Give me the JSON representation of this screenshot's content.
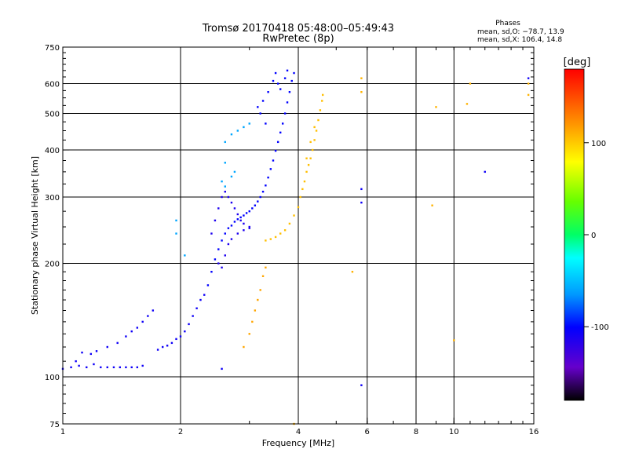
{
  "chart_data": {
    "type": "scatter",
    "title": "Tromsø 20170418 05:48:00–05:49:43",
    "subtitle": "RwPretec (8p)",
    "xlabel": "Frequency [MHz]",
    "ylabel": "Stationary phase Virtual Height [km]",
    "xscale": "log",
    "yscale": "log",
    "xlim": [
      1,
      16
    ],
    "ylim": [
      75,
      750
    ],
    "x_ticks": [
      {
        "v": 1,
        "label": "1"
      },
      {
        "v": 2,
        "label": "2"
      },
      {
        "v": 4,
        "label": "4"
      },
      {
        "v": 6,
        "label": "6"
      },
      {
        "v": 8,
        "label": "8"
      },
      {
        "v": 10,
        "label": "10"
      },
      {
        "v": 16,
        "label": "16"
      }
    ],
    "x_grid": [
      2,
      4,
      6,
      8,
      10
    ],
    "y_ticks": [
      {
        "v": 75,
        "label": "75"
      },
      {
        "v": 100,
        "label": "100"
      },
      {
        "v": 200,
        "label": "200"
      },
      {
        "v": 300,
        "label": "300"
      },
      {
        "v": 400,
        "label": "400"
      },
      {
        "v": 500,
        "label": "500"
      },
      {
        "v": 600,
        "label": "600"
      },
      {
        "v": 750,
        "label": "750"
      }
    ],
    "y_grid": [
      100,
      200,
      300,
      400,
      500,
      600
    ],
    "grid": true,
    "phase_info": {
      "title": "Phases",
      "line1": "mean, sd,O: −78.7, 13.9",
      "line2": "mean, sd,X: 106.4, 14.8"
    },
    "colorbar": {
      "label": "[deg]",
      "range": [
        -180,
        180
      ],
      "ticks": [
        {
          "v": 100,
          "label": "100"
        },
        {
          "v": 0,
          "label": "0"
        },
        {
          "v": -100,
          "label": "-100"
        }
      ]
    },
    "series": [
      {
        "trace": "O-mode E/F1 low trace (blue, ~-100 deg)",
        "phase": -105,
        "points": [
          [
            1.0,
            105
          ],
          [
            1.05,
            106
          ],
          [
            1.08,
            110
          ],
          [
            1.1,
            107
          ],
          [
            1.15,
            106
          ],
          [
            1.2,
            108
          ],
          [
            1.25,
            106
          ],
          [
            1.3,
            106
          ],
          [
            1.35,
            106
          ],
          [
            1.4,
            106
          ],
          [
            1.45,
            106
          ],
          [
            1.5,
            106
          ],
          [
            1.55,
            106
          ],
          [
            1.6,
            107
          ],
          [
            1.12,
            116
          ],
          [
            1.18,
            115
          ],
          [
            1.22,
            117
          ],
          [
            1.3,
            120
          ],
          [
            1.38,
            123
          ],
          [
            1.45,
            128
          ],
          [
            1.5,
            132
          ],
          [
            1.55,
            135
          ],
          [
            1.6,
            140
          ],
          [
            1.65,
            145
          ],
          [
            1.7,
            150
          ],
          [
            1.75,
            118
          ],
          [
            1.8,
            120
          ],
          [
            1.85,
            121
          ],
          [
            1.9,
            123
          ],
          [
            1.95,
            126
          ],
          [
            2.0,
            128
          ],
          [
            2.05,
            132
          ],
          [
            2.1,
            138
          ],
          [
            2.15,
            145
          ],
          [
            2.2,
            152
          ],
          [
            2.25,
            160
          ],
          [
            2.3,
            165
          ]
        ]
      },
      {
        "trace": "O-mode F2 trace (blue, ~-100 deg)",
        "phase": -100,
        "points": [
          [
            2.35,
            175
          ],
          [
            2.4,
            190
          ],
          [
            2.45,
            205
          ],
          [
            2.5,
            218
          ],
          [
            2.55,
            230
          ],
          [
            2.6,
            240
          ],
          [
            2.65,
            248
          ],
          [
            2.7,
            252
          ],
          [
            2.75,
            258
          ],
          [
            2.8,
            262
          ],
          [
            2.85,
            265
          ],
          [
            2.9,
            268
          ],
          [
            2.95,
            272
          ],
          [
            3.0,
            275
          ],
          [
            3.05,
            280
          ],
          [
            3.1,
            285
          ],
          [
            3.15,
            292
          ],
          [
            3.2,
            300
          ],
          [
            3.25,
            310
          ],
          [
            3.3,
            322
          ],
          [
            3.35,
            338
          ],
          [
            3.4,
            356
          ],
          [
            3.45,
            375
          ],
          [
            3.5,
            398
          ],
          [
            3.55,
            420
          ],
          [
            3.6,
            445
          ],
          [
            3.65,
            470
          ],
          [
            3.7,
            500
          ],
          [
            3.75,
            535
          ],
          [
            3.8,
            570
          ],
          [
            3.85,
            610
          ],
          [
            3.9,
            640
          ],
          [
            3.3,
            470
          ],
          [
            3.2,
            500
          ],
          [
            3.15,
            520
          ],
          [
            3.25,
            540
          ],
          [
            3.35,
            570
          ],
          [
            3.45,
            610
          ],
          [
            3.5,
            640
          ],
          [
            3.55,
            600
          ],
          [
            3.6,
            580
          ],
          [
            3.7,
            620
          ],
          [
            3.75,
            650
          ]
        ]
      },
      {
        "trace": "O-mode F1 cusp region (blue)",
        "phase": -110,
        "points": [
          [
            2.4,
            240
          ],
          [
            2.45,
            260
          ],
          [
            2.5,
            280
          ],
          [
            2.55,
            300
          ],
          [
            2.6,
            310
          ],
          [
            2.65,
            300
          ],
          [
            2.7,
            290
          ],
          [
            2.75,
            280
          ],
          [
            2.8,
            270
          ],
          [
            2.85,
            260
          ],
          [
            2.9,
            255
          ],
          [
            3.0,
            250
          ],
          [
            2.5,
            200
          ],
          [
            2.55,
            195
          ],
          [
            2.6,
            210
          ],
          [
            2.65,
            225
          ],
          [
            2.7,
            232
          ],
          [
            2.8,
            240
          ],
          [
            2.9,
            245
          ],
          [
            3.0,
            248
          ]
        ]
      },
      {
        "trace": "Upper spread traces (cyan, ~-60 deg)",
        "phase": -60,
        "points": [
          [
            2.6,
            420
          ],
          [
            2.7,
            440
          ],
          [
            2.8,
            450
          ],
          [
            2.9,
            460
          ],
          [
            3.0,
            470
          ],
          [
            2.6,
            320
          ],
          [
            2.55,
            330
          ],
          [
            2.7,
            340
          ],
          [
            2.75,
            350
          ],
          [
            2.6,
            370
          ],
          [
            1.95,
            240
          ],
          [
            1.95,
            260
          ],
          [
            2.05,
            210
          ]
        ]
      },
      {
        "trace": "X-mode F trace (orange, ~100 deg)",
        "phase": 105,
        "points": [
          [
            3.3,
            230
          ],
          [
            3.4,
            232
          ],
          [
            3.5,
            235
          ],
          [
            3.6,
            240
          ],
          [
            3.7,
            245
          ],
          [
            3.8,
            255
          ],
          [
            3.9,
            268
          ],
          [
            4.0,
            282
          ],
          [
            4.05,
            300
          ],
          [
            4.1,
            315
          ],
          [
            4.15,
            330
          ],
          [
            4.2,
            350
          ],
          [
            4.25,
            365
          ],
          [
            4.3,
            380
          ],
          [
            4.35,
            400
          ],
          [
            4.4,
            425
          ],
          [
            4.45,
            450
          ],
          [
            4.5,
            480
          ],
          [
            4.55,
            510
          ],
          [
            4.6,
            540
          ],
          [
            4.62,
            560
          ],
          [
            4.2,
            380
          ],
          [
            4.3,
            420
          ],
          [
            4.4,
            460
          ]
        ]
      },
      {
        "trace": "X-mode lower trace (orange)",
        "phase": 115,
        "points": [
          [
            2.9,
            120
          ],
          [
            3.0,
            130
          ],
          [
            3.05,
            140
          ],
          [
            3.1,
            150
          ],
          [
            3.15,
            160
          ],
          [
            3.2,
            170
          ],
          [
            3.25,
            185
          ],
          [
            3.3,
            195
          ]
        ]
      },
      {
        "trace": "Scattered points",
        "phase": 110,
        "points": [
          [
            5.8,
            620
          ],
          [
            5.8,
            570
          ],
          [
            9.0,
            520
          ],
          [
            10.8,
            530
          ],
          [
            11.0,
            600
          ],
          [
            15.5,
            560
          ],
          [
            15.5,
            600
          ],
          [
            5.5,
            190
          ],
          [
            8.8,
            285
          ],
          [
            10.0,
            125
          ],
          [
            3.9,
            75
          ]
        ]
      },
      {
        "trace": "Scattered points (blue)",
        "phase": -105,
        "points": [
          [
            5.8,
            315
          ],
          [
            5.8,
            290
          ],
          [
            5.8,
            95
          ],
          [
            12.0,
            350
          ],
          [
            15.5,
            620
          ],
          [
            2.55,
            105
          ]
        ]
      }
    ]
  }
}
